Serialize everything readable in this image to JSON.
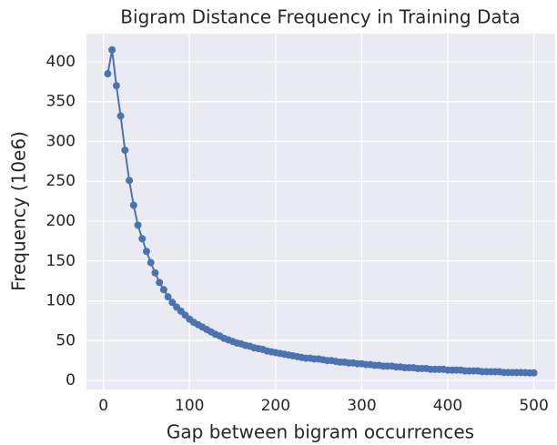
{
  "chart_data": {
    "type": "line",
    "title": "Bigram Distance Frequency in Training Data",
    "x_label": "Gap between bigram occurrences",
    "y_label": "Frequency (10e6)",
    "x": [
      5,
      10,
      15,
      20,
      25,
      30,
      35,
      40,
      45,
      50,
      55,
      60,
      65,
      70,
      75,
      80,
      85,
      90,
      95,
      100,
      105,
      110,
      115,
      120,
      125,
      130,
      135,
      140,
      145,
      150,
      155,
      160,
      165,
      170,
      175,
      180,
      185,
      190,
      195,
      200,
      205,
      210,
      215,
      220,
      225,
      230,
      235,
      240,
      245,
      250,
      255,
      260,
      265,
      270,
      275,
      280,
      285,
      290,
      295,
      300,
      305,
      310,
      315,
      320,
      325,
      330,
      335,
      340,
      345,
      350,
      355,
      360,
      365,
      370,
      375,
      380,
      385,
      390,
      395,
      400,
      405,
      410,
      415,
      420,
      425,
      430,
      435,
      440,
      445,
      450,
      455,
      460,
      465,
      470,
      475,
      480,
      485,
      490,
      495,
      500
    ],
    "series": [
      {
        "name": "frequency",
        "color": "#4c72b0",
        "values": [
          385,
          415,
          370,
          332,
          289,
          251,
          220,
          195,
          178,
          162,
          148,
          135,
          123,
          114,
          105,
          98,
          92,
          87,
          82,
          77,
          73,
          70,
          67,
          64,
          61,
          58,
          56,
          53,
          51,
          49,
          47,
          46,
          44,
          43,
          41,
          40,
          39,
          37,
          36,
          35,
          34,
          33,
          32,
          31,
          30,
          29,
          28,
          28,
          27,
          27,
          26,
          25,
          25,
          24,
          23,
          23,
          22,
          22,
          21,
          21,
          20,
          20,
          19,
          19,
          18,
          18,
          18,
          17,
          17,
          16,
          16,
          16,
          15,
          15,
          15,
          14,
          14,
          14,
          14,
          13,
          13,
          13,
          13,
          12,
          12,
          12,
          12,
          11,
          11,
          11,
          11,
          11,
          10,
          10,
          10,
          10,
          10,
          9.8,
          9.6,
          9.5
        ]
      }
    ],
    "xlim": [
      -19.75,
      524.75
    ],
    "xticks": [
      0,
      100,
      200,
      300,
      400,
      500
    ],
    "ylim": [
      -11.3,
      435.3
    ],
    "yticks": [
      0,
      50,
      100,
      150,
      200,
      250,
      300,
      350,
      400
    ],
    "grid": true,
    "background": "#eaeaf2"
  }
}
